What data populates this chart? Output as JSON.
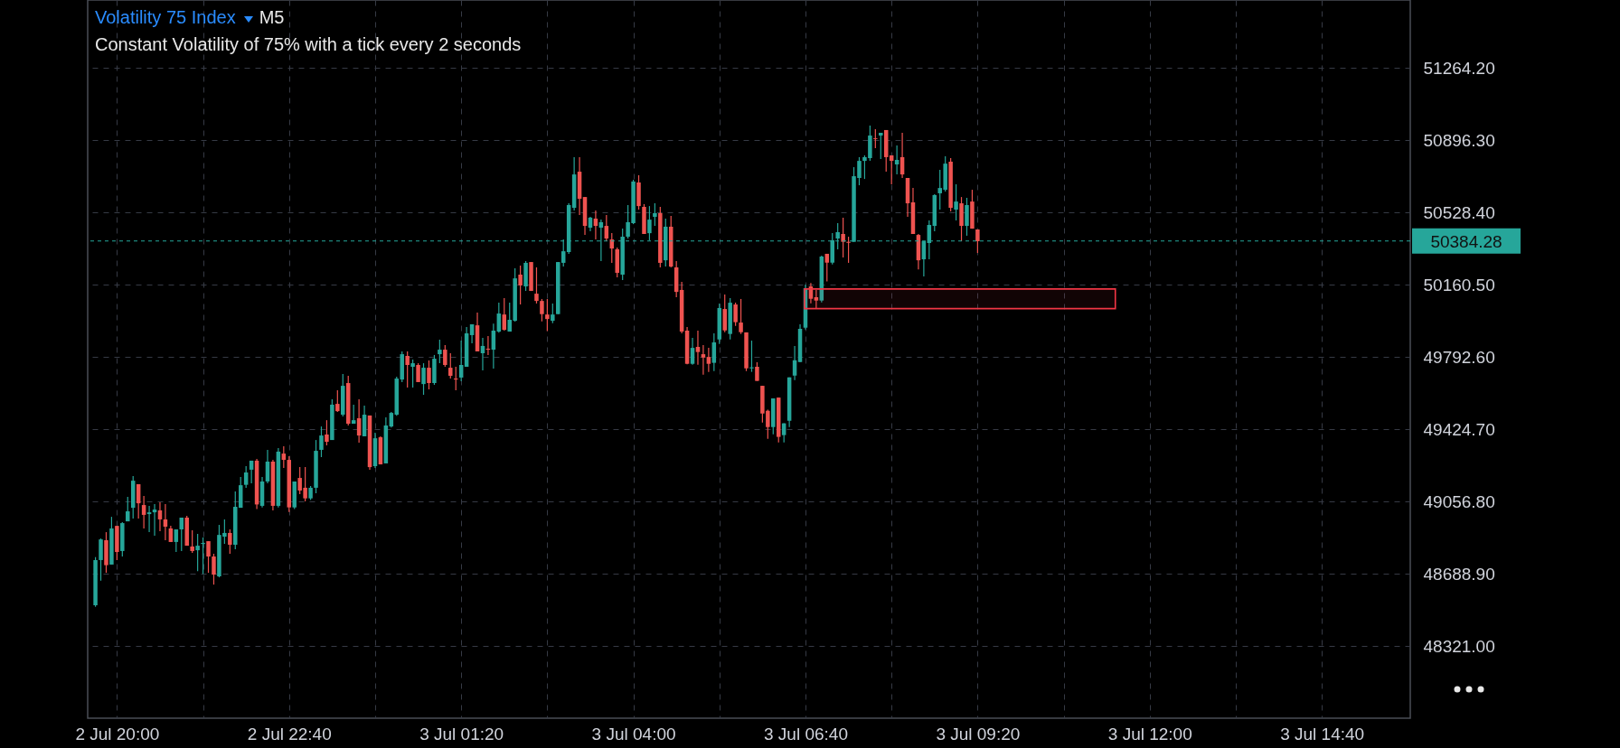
{
  "chart_data": {
    "type": "candlestick",
    "title": "Volatility 75 Index",
    "subtitle": "Constant Volatility of 75% with a tick every 2 seconds",
    "annotations": [
      "M5"
    ],
    "xlim": [
      "--07-02T19:37",
      "--07-03T15:58"
    ],
    "ylim": [
      47955,
      51611
    ],
    "xticks": [
      {
        "value": "--07-02T20:00",
        "label": "2 Jul 20:00"
      },
      {
        "value": "--07-02T21:20",
        "label": null
      },
      {
        "value": "--07-02T22:40",
        "label": "2 Jul 22:40"
      },
      {
        "value": "--07-03T00:00",
        "label": null
      },
      {
        "value": "--07-03T01:20",
        "label": "3 Jul 01:20"
      },
      {
        "value": "--07-03T02:40",
        "label": null
      },
      {
        "value": "--07-03T04:00",
        "label": "3 Jul 04:00"
      },
      {
        "value": "--07-03T05:20",
        "label": null
      },
      {
        "value": "--07-03T06:40",
        "label": "3 Jul 06:40"
      },
      {
        "value": "--07-03T08:00",
        "label": null
      },
      {
        "value": "--07-03T09:20",
        "label": "3 Jul 09:20"
      },
      {
        "value": "--07-03T10:40",
        "label": null
      },
      {
        "value": "--07-03T12:00",
        "label": "3 Jul 12:00"
      },
      {
        "value": "--07-03T13:20",
        "label": null
      },
      {
        "value": "--07-03T14:40",
        "label": "3 Jul 14:40"
      }
    ],
    "yticks": [
      {
        "value": 48321.0,
        "label": "48321.00"
      },
      {
        "value": 48688.9,
        "label": "48688.90"
      },
      {
        "value": 49056.8,
        "label": "49056.80"
      },
      {
        "value": 49424.7,
        "label": "49424.70"
      },
      {
        "value": 49792.6,
        "label": "49792.60"
      },
      {
        "value": 50160.5,
        "label": "50160.50"
      },
      {
        "value": 50528.4,
        "label": "50528.40"
      },
      {
        "value": 50896.3,
        "label": "50896.30"
      },
      {
        "value": 51264.2,
        "label": "51264.20"
      }
    ],
    "grid": true,
    "ref_lines": [
      {
        "axis": "y",
        "value": 50384.28,
        "label": "50384.28",
        "color": "#26a69a",
        "line_style": "dashed"
      }
    ],
    "bands": [
      {
        "axis": "y",
        "from": 50040,
        "to": 50140,
        "color": "#f23645"
      }
    ],
    "x": [
      "--07-02T19:40",
      "--07-02T19:45",
      "--07-02T19:50",
      "--07-02T19:55",
      "--07-02T20:00",
      "--07-02T20:05",
      "--07-02T20:10",
      "--07-02T20:15",
      "--07-02T20:20",
      "--07-02T20:25",
      "--07-02T20:30",
      "--07-02T20:35",
      "--07-02T20:40",
      "--07-02T20:45",
      "--07-02T20:50",
      "--07-02T20:55",
      "--07-02T21:00",
      "--07-02T21:05",
      "--07-02T21:10",
      "--07-02T21:15",
      "--07-02T21:20",
      "--07-02T21:25",
      "--07-02T21:30",
      "--07-02T21:35",
      "--07-02T21:40",
      "--07-02T21:45",
      "--07-02T21:50",
      "--07-02T21:55",
      "--07-02T22:00",
      "--07-02T22:05",
      "--07-02T22:10",
      "--07-02T22:15",
      "--07-02T22:20",
      "--07-02T22:25",
      "--07-02T22:30",
      "--07-02T22:35",
      "--07-02T22:40",
      "--07-02T22:45",
      "--07-02T22:50",
      "--07-02T22:55",
      "--07-02T23:00",
      "--07-02T23:05",
      "--07-02T23:10",
      "--07-02T23:15",
      "--07-02T23:20",
      "--07-02T23:25",
      "--07-02T23:30",
      "--07-02T23:35",
      "--07-02T23:40",
      "--07-02T23:45",
      "--07-02T23:50",
      "--07-02T23:55",
      "--07-03T00:00",
      "--07-03T00:05",
      "--07-03T00:10",
      "--07-03T00:15",
      "--07-03T00:20",
      "--07-03T00:25",
      "--07-03T00:30",
      "--07-03T00:35",
      "--07-03T00:40",
      "--07-03T00:45",
      "--07-03T00:50",
      "--07-03T00:55",
      "--07-03T01:00",
      "--07-03T01:05",
      "--07-03T01:10",
      "--07-03T01:15",
      "--07-03T01:20",
      "--07-03T01:25",
      "--07-03T01:30",
      "--07-03T01:35",
      "--07-03T01:40",
      "--07-03T01:45",
      "--07-03T01:50",
      "--07-03T01:55",
      "--07-03T02:00",
      "--07-03T02:05",
      "--07-03T02:10",
      "--07-03T02:15",
      "--07-03T02:20",
      "--07-03T02:25",
      "--07-03T02:30",
      "--07-03T02:35",
      "--07-03T02:40",
      "--07-03T02:45",
      "--07-03T02:50",
      "--07-03T02:55",
      "--07-03T03:00",
      "--07-03T03:05",
      "--07-03T03:10",
      "--07-03T03:15",
      "--07-03T03:20",
      "--07-03T03:25",
      "--07-03T03:30",
      "--07-03T03:35",
      "--07-03T03:40",
      "--07-03T03:45",
      "--07-03T03:50",
      "--07-03T03:55",
      "--07-03T04:00",
      "--07-03T04:05",
      "--07-03T04:10",
      "--07-03T04:15",
      "--07-03T04:20",
      "--07-03T04:25",
      "--07-03T04:30",
      "--07-03T04:35",
      "--07-03T04:40",
      "--07-03T04:45",
      "--07-03T04:50",
      "--07-03T04:55",
      "--07-03T05:00",
      "--07-03T05:05",
      "--07-03T05:10",
      "--07-03T05:15",
      "--07-03T05:20",
      "--07-03T05:25",
      "--07-03T05:30",
      "--07-03T05:35",
      "--07-03T05:40",
      "--07-03T05:45",
      "--07-03T05:50",
      "--07-03T05:55",
      "--07-03T06:00",
      "--07-03T06:05",
      "--07-03T06:10",
      "--07-03T06:15",
      "--07-03T06:20",
      "--07-03T06:25",
      "--07-03T06:30",
      "--07-03T06:35",
      "--07-03T06:40",
      "--07-03T06:45",
      "--07-03T06:50",
      "--07-03T06:55",
      "--07-03T07:00",
      "--07-03T07:05",
      "--07-03T07:10",
      "--07-03T07:15",
      "--07-03T07:20",
      "--07-03T07:25",
      "--07-03T07:30",
      "--07-03T07:35",
      "--07-03T07:40",
      "--07-03T07:45",
      "--07-03T07:50",
      "--07-03T07:55",
      "--07-03T08:00",
      "--07-03T08:05",
      "--07-03T08:10",
      "--07-03T08:15",
      "--07-03T08:20",
      "--07-03T08:25",
      "--07-03T08:30",
      "--07-03T08:35",
      "--07-03T08:40",
      "--07-03T08:45",
      "--07-03T08:50",
      "--07-03T08:55",
      "--07-03T09:00",
      "--07-03T09:05",
      "--07-03T09:10",
      "--07-03T09:15",
      "--07-03T09:20"
    ],
    "ohlc": [
      [
        48530,
        48775,
        48522,
        48760
      ],
      [
        48760,
        48870,
        48655,
        48865
      ],
      [
        48861,
        48902,
        48695,
        48734
      ],
      [
        48737,
        48980,
        48737,
        48921
      ],
      [
        48934,
        48934,
        48760,
        48801
      ],
      [
        48806,
        48953,
        48778,
        48948
      ],
      [
        48957,
        49082,
        48957,
        49008
      ],
      [
        49026,
        49187,
        48971,
        49164
      ],
      [
        49146,
        49146,
        48971,
        49049
      ],
      [
        49040,
        49086,
        48921,
        48990
      ],
      [
        48994,
        49036,
        48902,
        49003
      ],
      [
        49003,
        49045,
        48884,
        49017
      ],
      [
        49013,
        49054,
        48907,
        48967
      ],
      [
        48967,
        49045,
        48861,
        48930
      ],
      [
        48921,
        48934,
        48852,
        48852
      ],
      [
        48852,
        48916,
        48801,
        48916
      ],
      [
        48916,
        48976,
        48806,
        48976
      ],
      [
        48976,
        48985,
        48833,
        48833
      ],
      [
        48829,
        48911,
        48796,
        48806
      ],
      [
        48810,
        48893,
        48704,
        48833
      ],
      [
        48842,
        48875,
        48689,
        48847
      ],
      [
        48856,
        48856,
        48695,
        48778
      ],
      [
        48778,
        48792,
        48635,
        48686
      ],
      [
        48677,
        48939,
        48672,
        48888
      ],
      [
        48879,
        48967,
        48842,
        48898
      ],
      [
        48898,
        48916,
        48792,
        48838
      ],
      [
        48838,
        49109,
        48815,
        49031
      ],
      [
        49026,
        49183,
        49026,
        49141
      ],
      [
        49143,
        49238,
        49128,
        49206
      ],
      [
        49220,
        49266,
        49151,
        49266
      ],
      [
        49266,
        49275,
        49020,
        49043
      ],
      [
        49036,
        49183,
        49028,
        49160
      ],
      [
        49160,
        49321,
        49151,
        49261
      ],
      [
        49261,
        49270,
        49013,
        49036
      ],
      [
        49036,
        49330,
        49028,
        49312
      ],
      [
        49302,
        49339,
        49229,
        49270
      ],
      [
        49270,
        49289,
        49005,
        49028
      ],
      [
        49028,
        49160,
        49020,
        49160
      ],
      [
        49178,
        49233,
        49095,
        49114
      ],
      [
        49128,
        49233,
        49059,
        49074
      ],
      [
        49074,
        49137,
        49066,
        49128
      ],
      [
        49128,
        49371,
        49100,
        49316
      ],
      [
        49321,
        49440,
        49284,
        49394
      ],
      [
        49399,
        49472,
        49344,
        49362
      ],
      [
        49371,
        49578,
        49371,
        49551
      ],
      [
        49555,
        49624,
        49514,
        49518
      ],
      [
        49500,
        49707,
        49491,
        49647
      ],
      [
        49661,
        49698,
        49445,
        49454
      ],
      [
        49454,
        49551,
        49454,
        49472
      ],
      [
        49482,
        49578,
        49358,
        49394
      ],
      [
        49390,
        49546,
        49390,
        49500
      ],
      [
        49496,
        49496,
        49220,
        49233
      ],
      [
        49238,
        49408,
        49229,
        49380
      ],
      [
        49385,
        49390,
        49247,
        49247
      ],
      [
        49252,
        49486,
        49252,
        49445
      ],
      [
        49440,
        49514,
        49435,
        49509
      ],
      [
        49500,
        49693,
        49495,
        49684
      ],
      [
        49679,
        49822,
        49666,
        49808
      ],
      [
        49799,
        49822,
        49638,
        49753
      ],
      [
        49744,
        49781,
        49638,
        49762
      ],
      [
        49753,
        49762,
        49666,
        49666
      ],
      [
        49656,
        49762,
        49601,
        49739
      ],
      [
        49739,
        49776,
        49629,
        49661
      ],
      [
        49661,
        49804,
        49652,
        49785
      ],
      [
        49808,
        49882,
        49762,
        49831
      ],
      [
        49831,
        49854,
        49744,
        49753
      ],
      [
        49739,
        49813,
        49684,
        49698
      ],
      [
        49684,
        49744,
        49624,
        49679
      ],
      [
        49689,
        49877,
        49670,
        49753
      ],
      [
        49744,
        49946,
        49744,
        49914
      ],
      [
        49905,
        49960,
        49863,
        49960
      ],
      [
        49955,
        50020,
        49822,
        49822
      ],
      [
        49813,
        49891,
        49725,
        49850
      ],
      [
        49836,
        49900,
        49804,
        49831
      ],
      [
        49831,
        49964,
        49735,
        49928
      ],
      [
        49923,
        50070,
        49918,
        50015
      ],
      [
        50010,
        50093,
        49928,
        49932
      ],
      [
        49923,
        50070,
        49923,
        49983
      ],
      [
        49978,
        50245,
        49974,
        50194
      ],
      [
        50213,
        50259,
        50061,
        50158
      ],
      [
        50153,
        50282,
        50130,
        50273
      ],
      [
        50277,
        50277,
        50130,
        50130
      ],
      [
        50116,
        50250,
        50066,
        50079
      ],
      [
        50079,
        50089,
        49975,
        50012
      ],
      [
        50010,
        50089,
        49925,
        49987
      ],
      [
        49978,
        50066,
        49966,
        50010
      ],
      [
        50012,
        50277,
        50012,
        50277
      ],
      [
        50273,
        50392,
        50254,
        50332
      ],
      [
        50328,
        50576,
        50319,
        50567
      ],
      [
        50553,
        50811,
        50539,
        50723
      ],
      [
        50737,
        50811,
        50516,
        50599
      ],
      [
        50608,
        50608,
        50415,
        50461
      ],
      [
        50452,
        50507,
        50434,
        50503
      ],
      [
        50498,
        50539,
        50392,
        50461
      ],
      [
        50452,
        50493,
        50282,
        50480
      ],
      [
        50461,
        50516,
        50383,
        50397
      ],
      [
        50392,
        50424,
        50273,
        50346
      ],
      [
        50342,
        50351,
        50199,
        50222
      ],
      [
        50213,
        50447,
        50185,
        50406
      ],
      [
        50406,
        50567,
        50397,
        50480
      ],
      [
        50475,
        50696,
        50470,
        50687
      ],
      [
        50682,
        50719,
        50544,
        50562
      ],
      [
        50558,
        50572,
        50420,
        50420
      ],
      [
        50424,
        50562,
        50388,
        50493
      ],
      [
        50507,
        50576,
        50461,
        50526
      ],
      [
        50526,
        50558,
        50250,
        50273
      ],
      [
        50286,
        50498,
        50254,
        50457
      ],
      [
        50457,
        50512,
        50250,
        50254
      ],
      [
        50250,
        50282,
        50098,
        50125
      ],
      [
        50135,
        50176,
        49914,
        49923
      ],
      [
        49928,
        49946,
        49756,
        49759
      ],
      [
        49759,
        49891,
        49754,
        49840
      ],
      [
        49845,
        49928,
        49754,
        49819
      ],
      [
        49808,
        49854,
        49704,
        49791
      ],
      [
        49794,
        49840,
        49718,
        49759
      ],
      [
        49764,
        49914,
        49722,
        49868
      ],
      [
        49883,
        50066,
        49860,
        50043
      ],
      [
        50038,
        50112,
        49920,
        49929
      ],
      [
        49911,
        50093,
        49883,
        50070
      ],
      [
        50061,
        50070,
        49952,
        49971
      ],
      [
        49969,
        50089,
        49911,
        49920
      ],
      [
        49919,
        49919,
        49722,
        49736
      ],
      [
        49736,
        49877,
        49718,
        49741
      ],
      [
        49744,
        49767,
        49672,
        49672
      ],
      [
        49647,
        49647,
        49460,
        49506
      ],
      [
        49520,
        49525,
        49377,
        49437
      ],
      [
        49437,
        49583,
        49400,
        49583
      ],
      [
        49587,
        49587,
        49359,
        49387
      ],
      [
        49396,
        49456,
        49359,
        49456
      ],
      [
        49469,
        49690,
        49437,
        49690
      ],
      [
        49699,
        49850,
        49676,
        49777
      ],
      [
        49768,
        49960,
        49768,
        49937
      ],
      [
        49943,
        50162,
        49934,
        50144
      ],
      [
        50153,
        50171,
        50067,
        50090
      ],
      [
        50098,
        50135,
        50040,
        50081
      ],
      [
        50081,
        50309,
        50072,
        50305
      ],
      [
        50319,
        50319,
        50178,
        50274
      ],
      [
        50274,
        50424,
        50265,
        50388
      ],
      [
        50397,
        50475,
        50342,
        50429
      ],
      [
        50420,
        50503,
        50300,
        50380
      ],
      [
        50380,
        50406,
        50273,
        50375
      ],
      [
        50380,
        50760,
        50380,
        50714
      ],
      [
        50705,
        50811,
        50668,
        50792
      ],
      [
        50792,
        50820,
        50700,
        50811
      ],
      [
        50806,
        50972,
        50792,
        50921
      ],
      [
        50907,
        50953,
        50857,
        50903
      ],
      [
        50921,
        50935,
        50802,
        50935
      ],
      [
        50949,
        50949,
        50737,
        50811
      ],
      [
        50820,
        50820,
        50673,
        50792
      ],
      [
        50774,
        50871,
        50723,
        50797
      ],
      [
        50811,
        50935,
        50705,
        50723
      ],
      [
        50705,
        50705,
        50507,
        50576
      ],
      [
        50581,
        50654,
        50420,
        50420
      ],
      [
        50415,
        50420,
        50240,
        50286
      ],
      [
        50291,
        50383,
        50204,
        50383
      ],
      [
        50374,
        50489,
        50291,
        50466
      ],
      [
        50461,
        50622,
        50434,
        50618
      ],
      [
        50627,
        50746,
        50544,
        50654
      ],
      [
        50645,
        50815,
        50636,
        50778
      ],
      [
        50788,
        50806,
        50535,
        50553
      ],
      [
        50544,
        50673,
        50489,
        50585
      ],
      [
        50576,
        50608,
        50383,
        50461
      ],
      [
        50461,
        50604,
        50411,
        50567
      ],
      [
        50585,
        50645,
        50447,
        50447
      ],
      [
        50443,
        50443,
        50323,
        50383
      ]
    ],
    "colors": [
      "#26a69a",
      "#26a69a",
      "#ef5350",
      "#26a69a",
      "#ef5350",
      "#26a69a",
      "#26a69a",
      "#26a69a",
      "#ef5350",
      "#ef5350",
      "#26a69a",
      "#26a69a",
      "#ef5350",
      "#ef5350",
      "#ef5350",
      "#26a69a",
      "#26a69a",
      "#ef5350",
      "#ef5350",
      "#26a69a",
      "#26a69a",
      "#ef5350",
      "#ef5350",
      "#26a69a",
      "#26a69a",
      "#ef5350",
      "#26a69a",
      "#26a69a",
      "#26a69a",
      "#26a69a",
      "#ef5350",
      "#26a69a",
      "#26a69a",
      "#ef5350",
      "#26a69a",
      "#ef5350",
      "#ef5350",
      "#26a69a",
      "#ef5350",
      "#ef5350",
      "#26a69a",
      "#26a69a",
      "#26a69a",
      "#ef5350",
      "#26a69a",
      "#ef5350",
      "#26a69a",
      "#ef5350",
      "#26a69a",
      "#ef5350",
      "#26a69a",
      "#ef5350",
      "#26a69a",
      "#ef5350",
      "#26a69a",
      "#26a69a",
      "#26a69a",
      "#26a69a",
      "#ef5350",
      "#26a69a",
      "#ef5350",
      "#26a69a",
      "#ef5350",
      "#26a69a",
      "#26a69a",
      "#ef5350",
      "#ef5350",
      "#ef5350",
      "#26a69a",
      "#26a69a",
      "#26a69a",
      "#ef5350",
      "#26a69a",
      "#ef5350",
      "#26a69a",
      "#26a69a",
      "#ef5350",
      "#26a69a",
      "#26a69a",
      "#ef5350",
      "#26a69a",
      "#ef5350",
      "#ef5350",
      "#ef5350",
      "#ef5350",
      "#26a69a",
      "#26a69a",
      "#26a69a",
      "#26a69a",
      "#26a69a",
      "#ef5350",
      "#ef5350",
      "#26a69a",
      "#ef5350",
      "#26a69a",
      "#ef5350",
      "#ef5350",
      "#ef5350",
      "#26a69a",
      "#26a69a",
      "#26a69a",
      "#ef5350",
      "#ef5350",
      "#26a69a",
      "#26a69a",
      "#ef5350",
      "#26a69a",
      "#ef5350",
      "#ef5350",
      "#ef5350",
      "#ef5350",
      "#26a69a",
      "#ef5350",
      "#ef5350",
      "#ef5350",
      "#26a69a",
      "#26a69a",
      "#ef5350",
      "#26a69a",
      "#ef5350",
      "#ef5350",
      "#ef5350",
      "#26a69a",
      "#ef5350",
      "#ef5350",
      "#ef5350",
      "#26a69a",
      "#ef5350",
      "#26a69a",
      "#26a69a",
      "#26a69a",
      "#26a69a",
      "#26a69a",
      "#ef5350",
      "#ef5350",
      "#26a69a",
      "#ef5350",
      "#26a69a",
      "#26a69a",
      "#ef5350",
      "#ef5350",
      "#26a69a",
      "#26a69a",
      "#26a69a",
      "#26a69a",
      "#ef5350",
      "#26a69a",
      "#ef5350",
      "#ef5350",
      "#26a69a",
      "#ef5350",
      "#ef5350",
      "#ef5350",
      "#ef5350",
      "#26a69a",
      "#26a69a",
      "#26a69a",
      "#26a69a",
      "#26a69a",
      "#ef5350",
      "#26a69a",
      "#ef5350",
      "#26a69a",
      "#ef5350",
      "#ef5350"
    ]
  }
}
